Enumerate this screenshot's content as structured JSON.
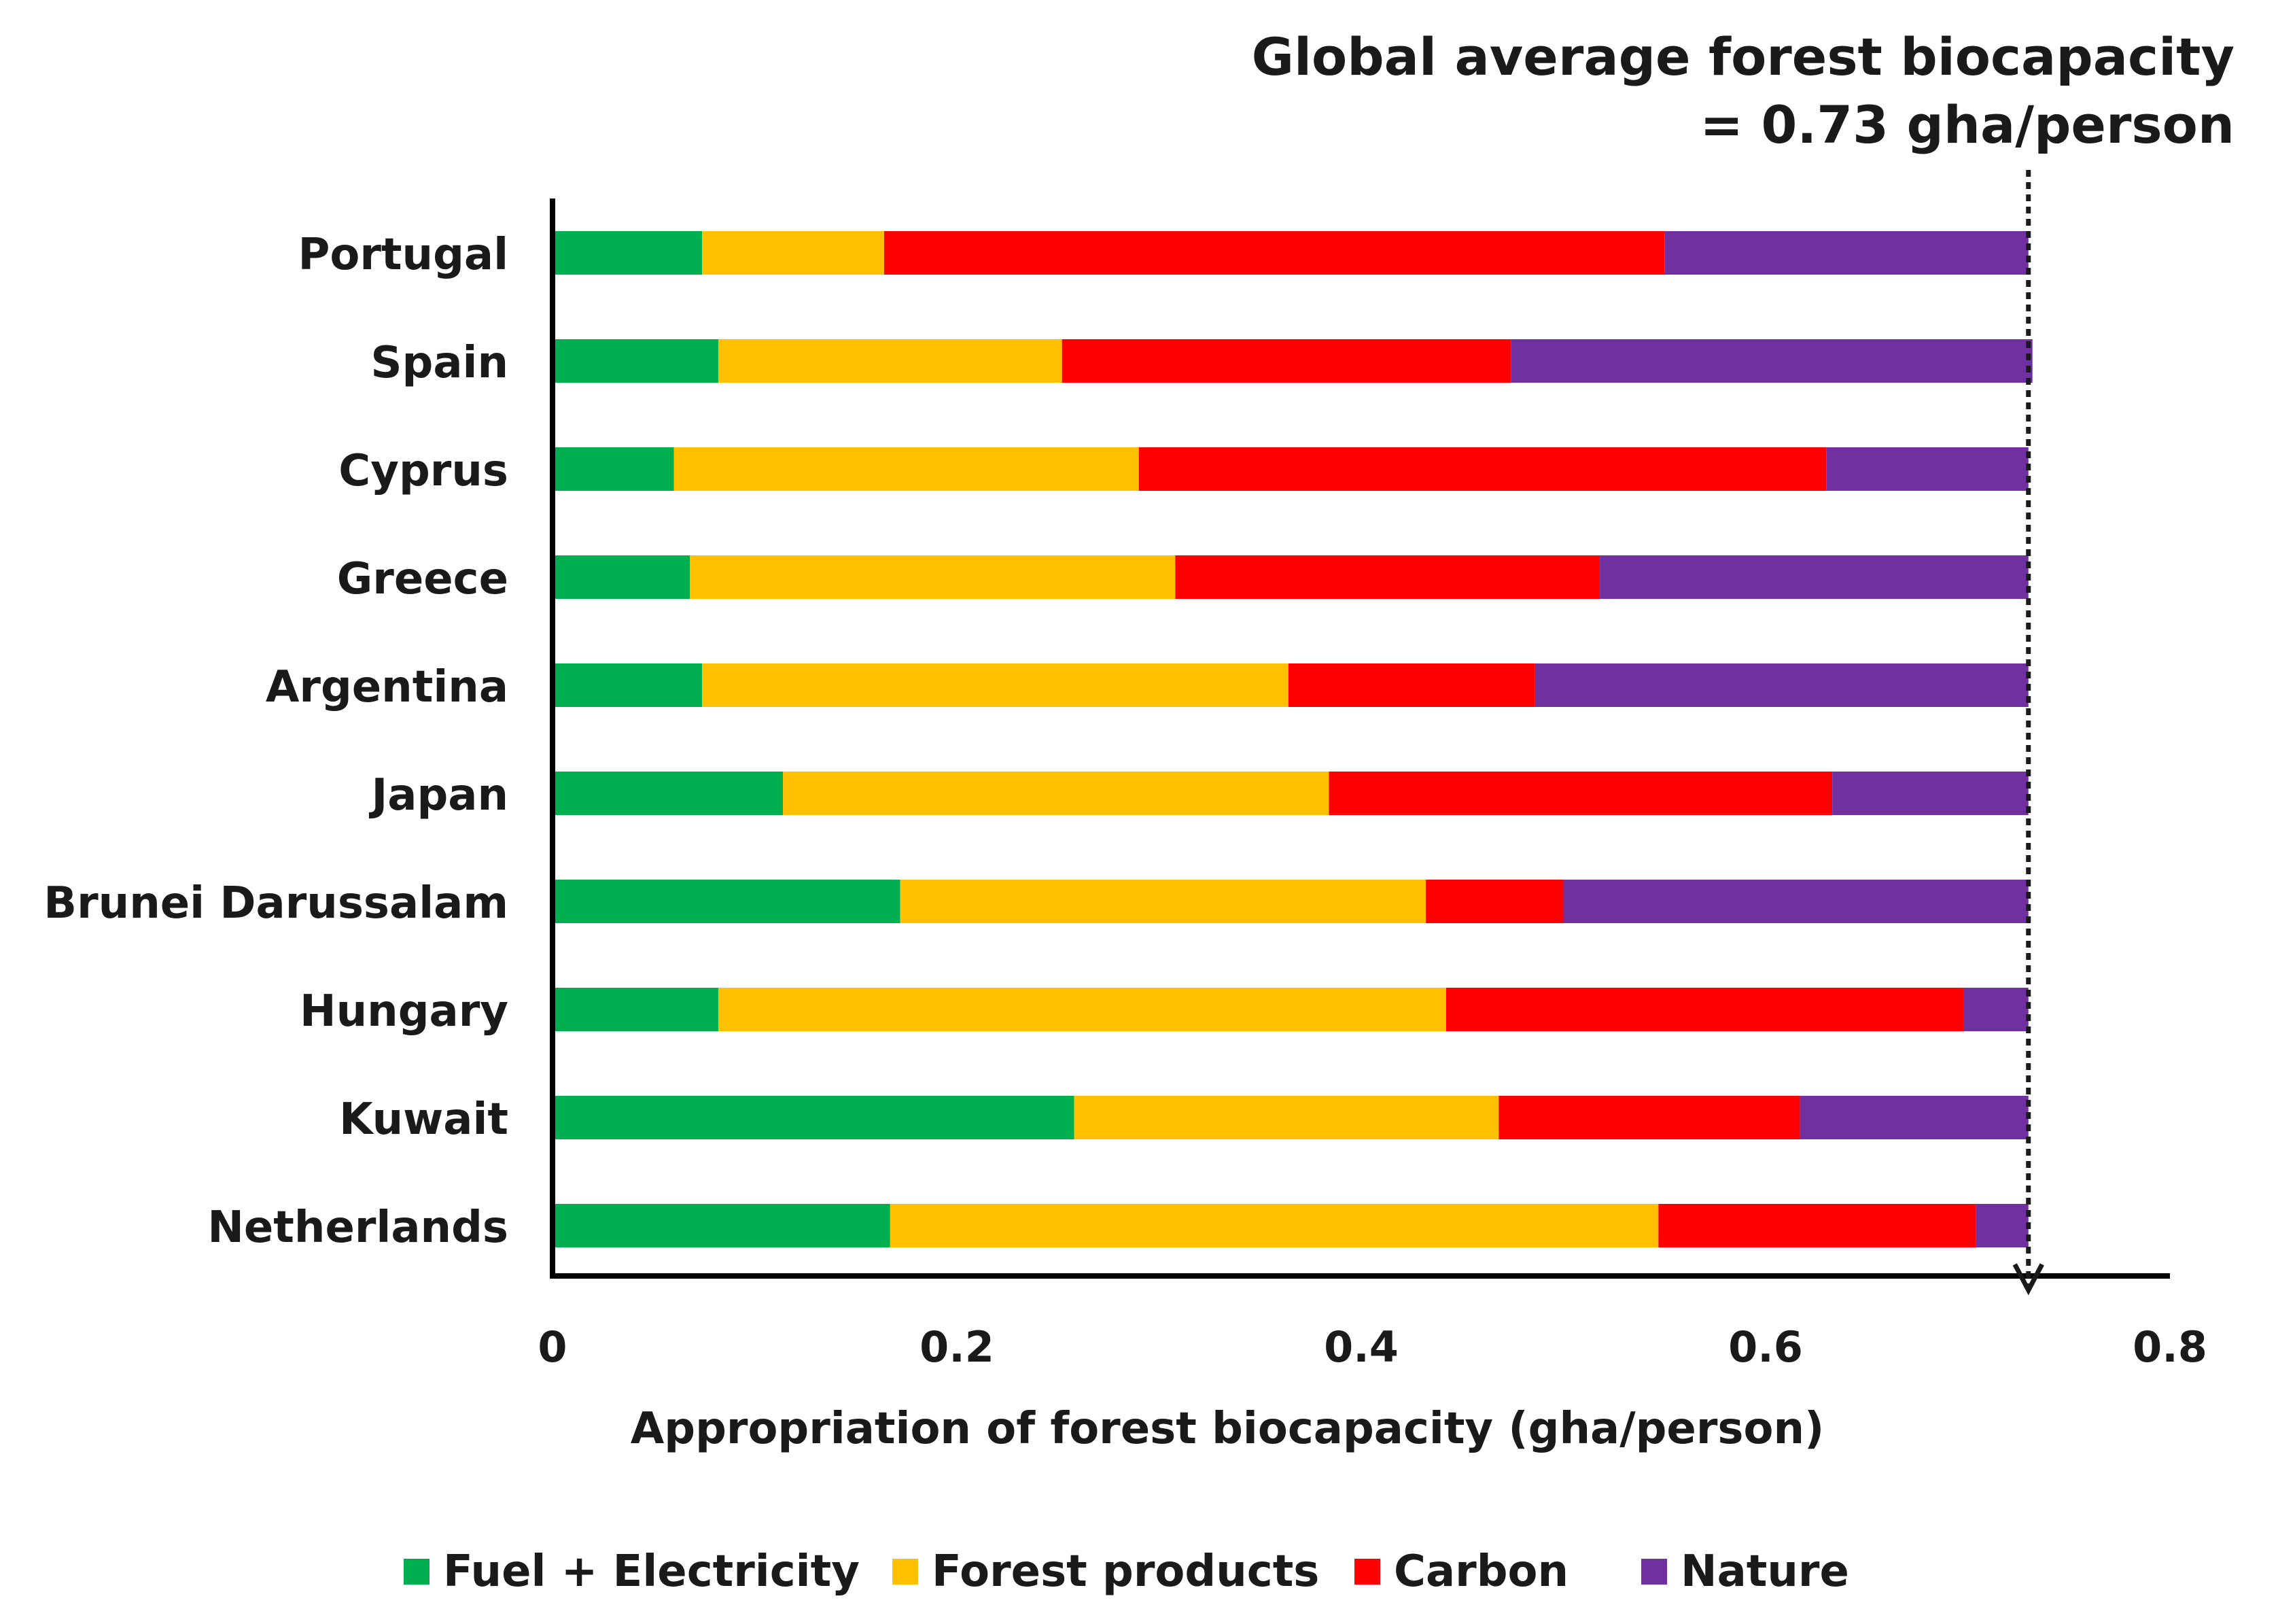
{
  "chart_data": {
    "type": "bar",
    "orientation": "horizontal",
    "stacked": true,
    "categories": [
      "Portugal",
      "Spain",
      "Cyprus",
      "Greece",
      "Argentina",
      "Japan",
      "Brunei Darussalam",
      "Hungary",
      "Kuwait",
      "Netherlands"
    ],
    "series": [
      {
        "name": "Fuel + Electricity",
        "color": "#00b050",
        "values": [
          0.074,
          0.082,
          0.06,
          0.068,
          0.074,
          0.114,
          0.172,
          0.082,
          0.258,
          0.167
        ]
      },
      {
        "name": "Forest products",
        "color": "#ffc000",
        "values": [
          0.09,
          0.17,
          0.23,
          0.24,
          0.29,
          0.27,
          0.26,
          0.36,
          0.21,
          0.38
        ]
      },
      {
        "name": "Carbon",
        "color": "#ff0000",
        "values": [
          0.386,
          0.222,
          0.34,
          0.21,
          0.122,
          0.249,
          0.068,
          0.256,
          0.149,
          0.157
        ]
      },
      {
        "name": "Nature",
        "color": "#7030a0",
        "values": [
          0.18,
          0.258,
          0.1,
          0.212,
          0.244,
          0.097,
          0.23,
          0.032,
          0.113,
          0.026
        ]
      }
    ],
    "xlabel": "Appropriation of forest biocapacity (gha/person)",
    "ylabel": "",
    "xlim": [
      0,
      0.8
    ],
    "xticks": [
      "0",
      "0.2",
      "0.4",
      "0.6",
      "0.8"
    ],
    "grid": false,
    "legend": "bottom",
    "reference_line": {
      "value": 0.73,
      "style": "dotted",
      "label_line1": "Global average forest biocapacity",
      "label_line2": "= 0.73 gha/person"
    }
  }
}
